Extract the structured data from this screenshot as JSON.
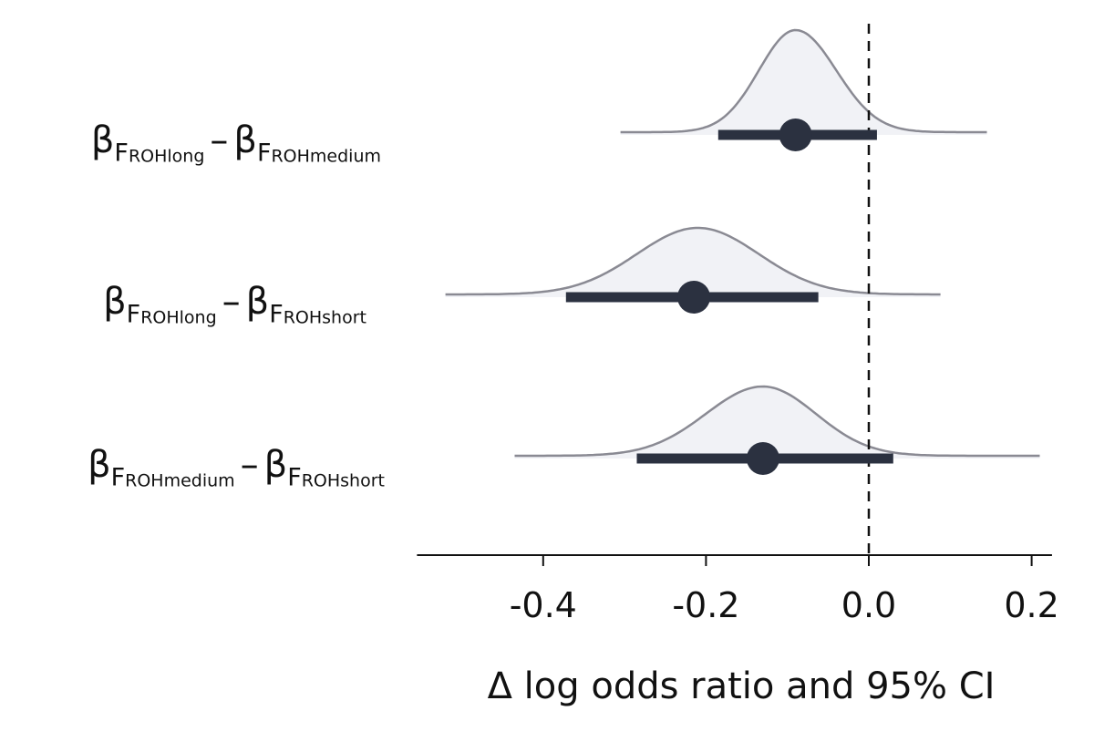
{
  "chart_data": {
    "type": "forest-density",
    "xlabel": "Δ log odds ratio and 95% CI",
    "xlim": [
      -0.555,
      0.225
    ],
    "xticks": [
      -0.4,
      -0.2,
      0.0,
      0.2
    ],
    "xtick_labels": [
      "-0.4",
      "-0.2",
      "0.0",
      "0.2"
    ],
    "reference_line": 0.0,
    "density_fill": "#f1f2f6",
    "density_stroke": "#8a8a93",
    "point_color": "#2b3140",
    "rows": [
      {
        "label": {
          "beta1": "β",
          "f1": "F",
          "s1": "ROHlong",
          "minus": "–",
          "beta2": "β",
          "f2": "F",
          "s2": "ROHmedium"
        },
        "estimate": -0.09,
        "ci": [
          -0.185,
          0.01
        ],
        "density_range": [
          -0.305,
          0.145
        ],
        "density_mode": -0.09,
        "density_sd_left": 0.045,
        "density_sd_right": 0.05
      },
      {
        "label": {
          "beta1": "β",
          "f1": "F",
          "s1": "ROHlong",
          "minus": "–",
          "beta2": "β",
          "f2": "F",
          "s2": "ROHshort"
        },
        "estimate": -0.215,
        "ci": [
          -0.372,
          -0.062
        ],
        "density_range": [
          -0.52,
          0.088
        ],
        "density_mode": -0.21,
        "density_sd_left": 0.075,
        "density_sd_right": 0.075
      },
      {
        "label": {
          "beta1": "β",
          "f1": "F",
          "s1": "ROHmedium",
          "minus": "–",
          "beta2": "β",
          "f2": "F",
          "s2": "ROHshort"
        },
        "estimate": -0.13,
        "ci": [
          -0.285,
          0.03
        ],
        "density_range": [
          -0.435,
          0.21
        ],
        "density_mode": -0.13,
        "density_sd_left": 0.07,
        "density_sd_right": 0.065
      }
    ]
  }
}
